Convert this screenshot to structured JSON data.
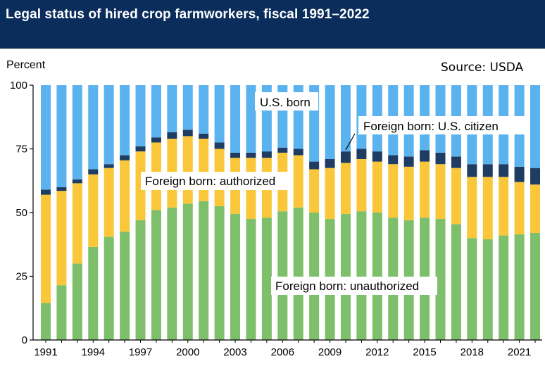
{
  "title": "Legal status of hired crop farmworkers, fiscal 1991–2022",
  "source": "Source: USDA",
  "colors": {
    "title_bg": "#0a2d5c",
    "unauthorized": "#7dbf6a",
    "authorized": "#fbc73a",
    "citizen": "#1f3c63",
    "us_born": "#5ab3ef"
  },
  "chart_data": {
    "type": "bar",
    "stacked": true,
    "ylabel": "Percent",
    "ylim": [
      0,
      100
    ],
    "yticks": [
      0,
      25,
      50,
      75,
      100
    ],
    "xticks": [
      "1991",
      "1994",
      "1997",
      "2000",
      "2003",
      "2006",
      "2009",
      "2012",
      "2015",
      "2018",
      "2021"
    ],
    "categories": [
      "1991",
      "1992",
      "1993",
      "1994",
      "1995",
      "1996",
      "1997",
      "1998",
      "1999",
      "2000",
      "2001",
      "2002",
      "2003",
      "2004",
      "2005",
      "2006",
      "2007",
      "2008",
      "2009",
      "2010",
      "2011",
      "2012",
      "2013",
      "2014",
      "2015",
      "2016",
      "2017",
      "2018",
      "2019",
      "2020",
      "2021",
      "2022"
    ],
    "series": [
      {
        "name": "Foreign born: unauthorized",
        "color_key": "unauthorized",
        "values": [
          14.5,
          21.5,
          30,
          36.5,
          40.5,
          42.5,
          47,
          51,
          52,
          53.5,
          54.5,
          52.5,
          49.5,
          47.5,
          48,
          50.5,
          52,
          50,
          47.5,
          49.5,
          50.5,
          50,
          48,
          47,
          48,
          47.5,
          45.5,
          40,
          39.5,
          41,
          41.5,
          42
        ]
      },
      {
        "name": "Foreign born: authorized",
        "color_key": "authorized",
        "values": [
          42.5,
          37,
          31.5,
          28.5,
          27,
          28,
          27,
          26.5,
          27,
          26.5,
          24.5,
          22.5,
          22,
          24,
          23.5,
          23,
          20.5,
          17,
          20,
          20,
          20.5,
          20,
          21,
          21,
          22,
          21.5,
          22,
          24,
          24.5,
          23,
          20.5,
          19
        ]
      },
      {
        "name": "Foreign born: U.S. citizen",
        "color_key": "citizen",
        "values": [
          2,
          1.5,
          1.5,
          2,
          1.5,
          2,
          2,
          2,
          2.5,
          2.5,
          2,
          2.5,
          2,
          2,
          2.5,
          2,
          2.5,
          3,
          3.5,
          4.5,
          4,
          4,
          3.5,
          4,
          4.5,
          4.5,
          4.5,
          5,
          5,
          5,
          6,
          6.5
        ]
      },
      {
        "name": "U.S. born",
        "color_key": "us_born",
        "values": [
          41,
          40,
          37,
          33,
          31,
          27.5,
          24,
          20.5,
          18.5,
          17.5,
          19,
          22.5,
          26.5,
          26.5,
          26,
          24.5,
          25,
          30,
          29,
          26,
          25,
          26,
          27.5,
          28,
          25.5,
          26.5,
          28,
          31,
          31,
          31,
          32,
          32.5
        ]
      }
    ],
    "annotations": [
      "U.S. born",
      "Foreign born: U.S. citizen",
      "Foreign born: authorized",
      "Foreign born: unauthorized"
    ]
  }
}
